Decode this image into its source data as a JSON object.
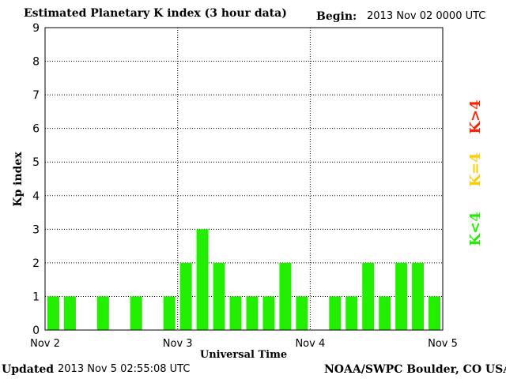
{
  "header": {
    "title": "Estimated Planetary K index (3 hour data)",
    "begin_label": "Begin:",
    "begin_value": "2013 Nov 02 0000 UTC"
  },
  "footer": {
    "updated_label": "Updated",
    "updated_value": "2013 Nov  5 02:55:08 UTC",
    "credit": "NOAA/SWPC Boulder, CO USA"
  },
  "legend": {
    "high": {
      "label": "K>4",
      "color": "#ff2200"
    },
    "mid": {
      "label": "K=4",
      "color": "#ffcc00"
    },
    "low": {
      "label": "K<4",
      "color": "#22ee00"
    }
  },
  "chart_data": {
    "type": "bar",
    "title": "Estimated Planetary K index (3 hour data)",
    "xlabel": "Universal Time",
    "ylabel": "Kp index",
    "ylim": [
      0,
      9
    ],
    "y_ticks": [
      0,
      1,
      2,
      3,
      4,
      5,
      6,
      7,
      8,
      9
    ],
    "x_tick_labels": [
      "Nov 2",
      "Nov 3",
      "Nov 4",
      "Nov 5"
    ],
    "interval_hours": 3,
    "values": [
      1,
      1,
      0,
      1,
      0,
      1,
      0,
      1,
      2,
      3,
      2,
      1,
      1,
      1,
      2,
      1,
      0,
      1,
      1,
      2,
      1,
      2,
      2,
      1
    ],
    "grid": true,
    "bar_color": "#22ee00"
  }
}
